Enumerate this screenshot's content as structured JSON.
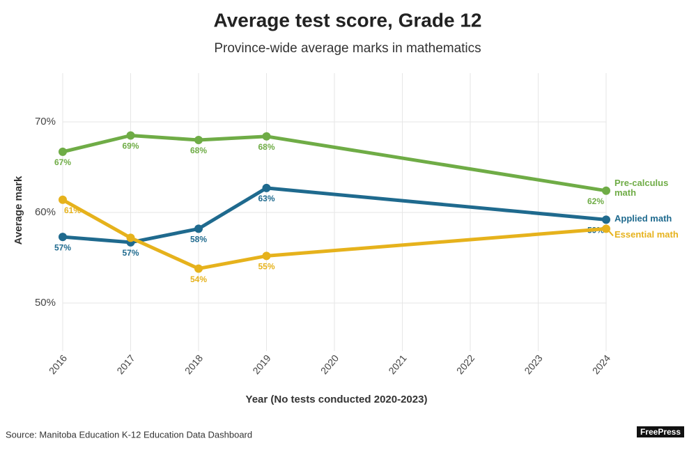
{
  "chart_data": {
    "type": "line",
    "title": "Average test score, Grade 12",
    "subtitle": "Province-wide average marks in mathematics",
    "y_label": "Average mark",
    "x_label": "Year (No tests conducted 2020-2023)",
    "x": [
      2016,
      2017,
      2018,
      2019,
      2024
    ],
    "series": [
      {
        "name": "Pre-calculus math",
        "color": "#6fac46",
        "values": [
          66.7,
          68.5,
          68.0,
          68.4,
          62.4
        ],
        "value_labels": [
          "67%",
          "69%",
          "68%",
          "68%",
          "62%"
        ]
      },
      {
        "name": "Applied math",
        "color": "#1f6a8e",
        "values": [
          57.3,
          56.7,
          58.2,
          62.7,
          59.2
        ],
        "value_labels": [
          "57%",
          "57%",
          "58%",
          "63%",
          "59%"
        ]
      },
      {
        "name": "Essential math",
        "color": "#e6b21c",
        "values": [
          61.4,
          57.2,
          53.8,
          55.2,
          58.2
        ],
        "value_labels": [
          "61%",
          null,
          "54%",
          "55%",
          null
        ]
      }
    ],
    "xlim": [
      2016,
      2024
    ],
    "xticks": [
      2016,
      2017,
      2018,
      2019,
      2020,
      2021,
      2022,
      2023,
      2024
    ],
    "ylim": [
      45,
      75
    ],
    "yticks": [
      {
        "value": 50,
        "label": "50%"
      },
      {
        "value": 60,
        "label": "60%"
      },
      {
        "value": 70,
        "label": "70%"
      }
    ],
    "grid": true,
    "source": "Source: Manitoba Education K-12 Education Data Dashboard",
    "logo": "FreePress"
  }
}
